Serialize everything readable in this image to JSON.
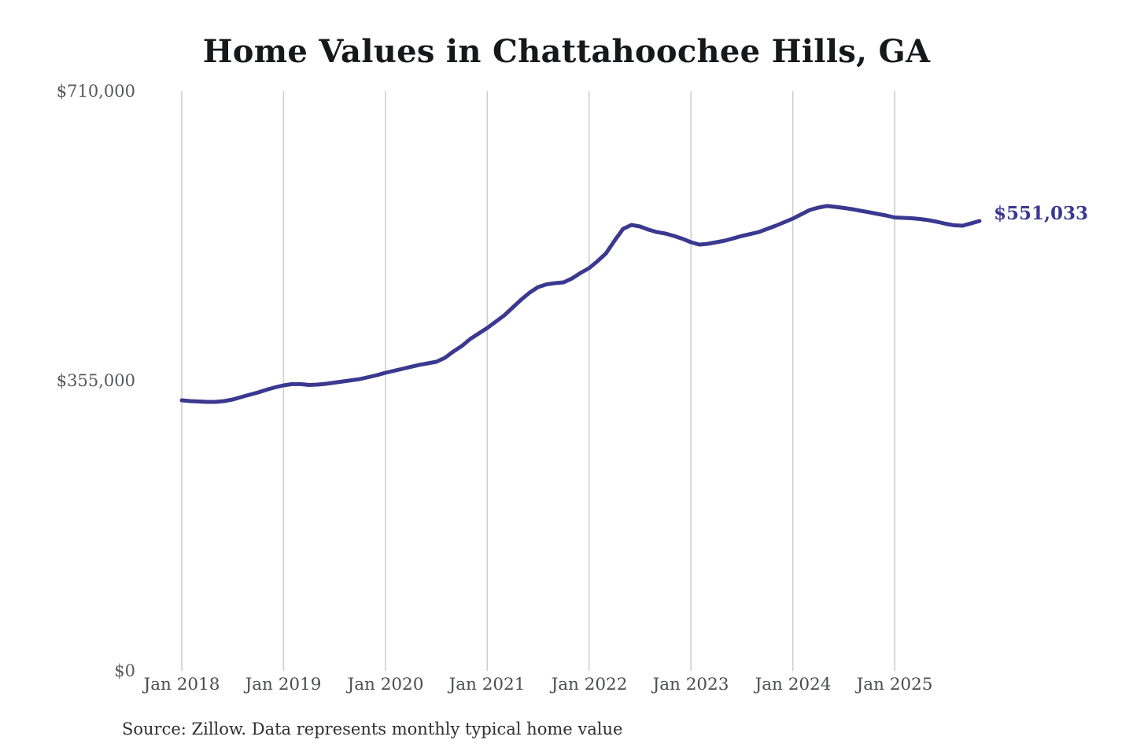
{
  "page": {
    "title": "Home Values in Chattahoochee Hills, GA",
    "source_note": "Source: Zillow. Data represents monthly typical home value"
  },
  "chart_data": {
    "type": "line",
    "title": "Home Values in Chattahoochee Hills, GA",
    "series_name": "Monthly typical home value",
    "unit": "USD",
    "line_color": "#3b3890",
    "end_label_color": "#3b3890",
    "grid_color": "#cccccc",
    "grid": "vertical-only",
    "legend": "none",
    "ylim": [
      0,
      710000
    ],
    "y_tick_labels": [
      "$0",
      "$355,000",
      "$710,000"
    ],
    "y_tick_values": [
      0,
      355000,
      710000
    ],
    "x_ticks": [
      "Jan 2018",
      "Jan 2019",
      "Jan 2020",
      "Jan 2021",
      "Jan 2022",
      "Jan 2023",
      "Jan 2024",
      "Jan 2025"
    ],
    "last_value_label": "$551,033",
    "last_value": 551033,
    "source": "Source: Zillow. Data represents monthly typical home value",
    "months": [
      "Jan 2018",
      "Feb 2018",
      "Mar 2018",
      "Apr 2018",
      "May 2018",
      "Jun 2018",
      "Jul 2018",
      "Aug 2018",
      "Sep 2018",
      "Oct 2018",
      "Nov 2018",
      "Dec 2018",
      "Jan 2019",
      "Feb 2019",
      "Mar 2019",
      "Apr 2019",
      "May 2019",
      "Jun 2019",
      "Jul 2019",
      "Aug 2019",
      "Sep 2019",
      "Oct 2019",
      "Nov 2019",
      "Dec 2019",
      "Jan 2020",
      "Feb 2020",
      "Mar 2020",
      "Apr 2020",
      "May 2020",
      "Jun 2020",
      "Jul 2020",
      "Aug 2020",
      "Sep 2020",
      "Oct 2020",
      "Nov 2020",
      "Dec 2020",
      "Jan 2021",
      "Feb 2021",
      "Mar 2021",
      "Apr 2021",
      "May 2021",
      "Jun 2021",
      "Jul 2021",
      "Aug 2021",
      "Sep 2021",
      "Oct 2021",
      "Nov 2021",
      "Dec 2021",
      "Jan 2022",
      "Feb 2022",
      "Mar 2022",
      "Apr 2022",
      "May 2022",
      "Jun 2022",
      "Jul 2022",
      "Aug 2022",
      "Sep 2022",
      "Oct 2022",
      "Nov 2022",
      "Dec 2022",
      "Jan 2023",
      "Feb 2023",
      "Mar 2023",
      "Apr 2023",
      "May 2023",
      "Jun 2023",
      "Jul 2023",
      "Aug 2023",
      "Sep 2023",
      "Oct 2023",
      "Nov 2023",
      "Dec 2023",
      "Jan 2024",
      "Feb 2024",
      "Mar 2024",
      "Apr 2024",
      "May 2024",
      "Jun 2024",
      "Jul 2024",
      "Aug 2024",
      "Sep 2024",
      "Oct 2024",
      "Nov 2024",
      "Dec 2024",
      "Jan 2025",
      "Feb 2025",
      "Mar 2025",
      "Apr 2025",
      "May 2025",
      "Jun 2025",
      "Jul 2025",
      "Aug 2025",
      "Sep 2025",
      "Oct 2025",
      "Nov 2025"
    ],
    "values": [
      331400,
      330400,
      330000,
      329500,
      329500,
      330400,
      332400,
      335300,
      338200,
      341000,
      344400,
      347300,
      349700,
      351200,
      351200,
      350200,
      350700,
      351600,
      353100,
      354500,
      356000,
      357400,
      359800,
      362200,
      365100,
      367500,
      369900,
      372400,
      374800,
      376700,
      378600,
      383400,
      391100,
      397900,
      406500,
      413300,
      420000,
      427700,
      435400,
      445100,
      454700,
      463400,
      470100,
      473500,
      474900,
      475900,
      480700,
      487500,
      493200,
      501900,
      511500,
      527000,
      541400,
      546200,
      544300,
      540400,
      537500,
      535600,
      532700,
      529300,
      525000,
      522100,
      523100,
      525000,
      527000,
      529800,
      532700,
      535100,
      537500,
      541400,
      545300,
      549600,
      553900,
      559200,
      564500,
      567400,
      569400,
      568400,
      567000,
      565500,
      563600,
      561700,
      559700,
      557800,
      555400,
      554900,
      554400,
      553500,
      552000,
      550100,
      547700,
      545800,
      545300,
      548100,
      551033
    ]
  }
}
